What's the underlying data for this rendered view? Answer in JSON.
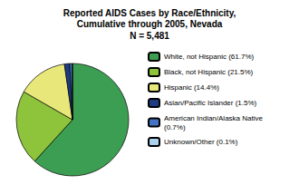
{
  "chart_data": {
    "type": "pie",
    "title": "Reported AIDS Cases by Race/Ethnicity,\nCumulative through 2005, Nevada",
    "subtitle": "N = 5,481",
    "categories": [
      "White, not Hispanic (61.7%)",
      "Black, not Hispanic (21.5%)",
      "Hispanic (14.4%)",
      "Asian/Pacific Islander (1.5%)",
      "American Indian/Alaska Native\n(0.7%)",
      "Unknown/Other (0.1%)"
    ],
    "values": [
      61.7,
      21.5,
      14.4,
      1.5,
      0.7,
      0.1
    ],
    "colors": [
      "#3c9e52",
      "#8dc43c",
      "#e8e87a",
      "#1f3b82",
      "#4472c4",
      "#aad4f0"
    ],
    "legend": "right"
  }
}
